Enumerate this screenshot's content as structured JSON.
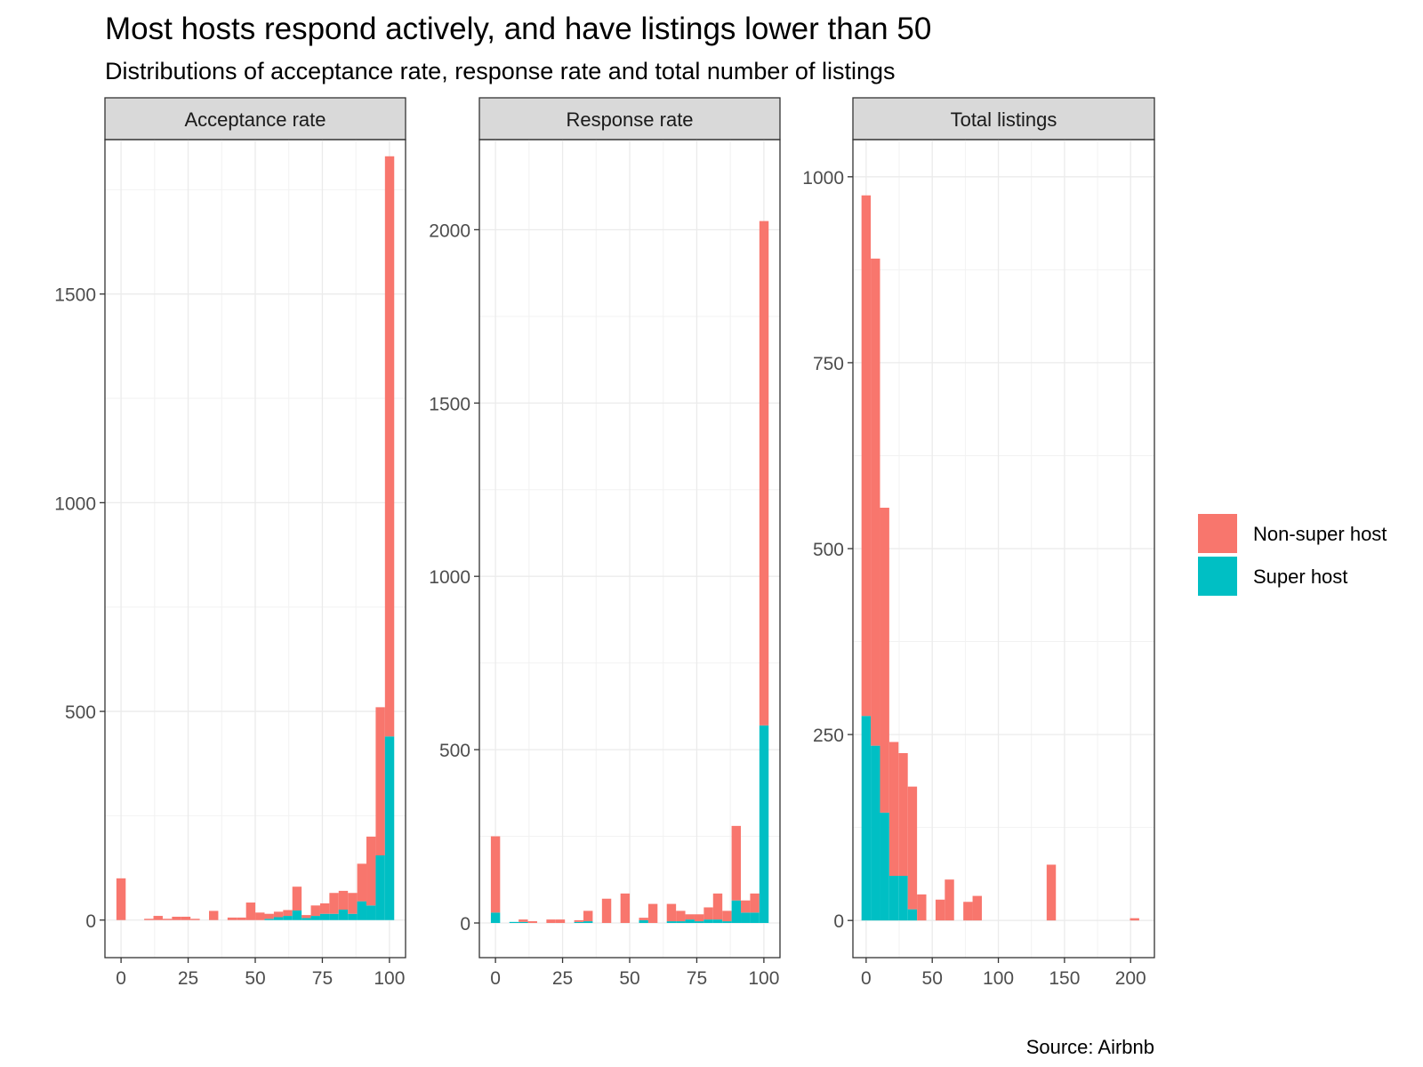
{
  "chart_data": {
    "type": "bar",
    "subtype": "stacked histogram, faceted",
    "title": "Most hosts respond actively, and have listings lower than 50",
    "subtitle": "Distributions of acceptance rate, response rate and total number of listings",
    "caption": "Source: Airbnb",
    "legend": {
      "position": "right",
      "entries": [
        {
          "key": "non_super",
          "label": "Non-super host",
          "color": "#F8766D"
        },
        {
          "key": "super",
          "label": "Super host",
          "color": "#00BFC4"
        }
      ]
    },
    "facets": [
      {
        "name": "Acceptance rate",
        "xlim": [
          -6,
          106
        ],
        "ylim": [
          -90,
          1870
        ],
        "x_ticks": [
          0,
          25,
          50,
          75,
          100
        ],
        "y_ticks": [
          0,
          500,
          1000,
          1500
        ],
        "y_minor": [
          250,
          750,
          1250,
          1750
        ],
        "bin_width": 3.45,
        "bins": [
          {
            "x": 0,
            "super": 0,
            "non_super": 100
          },
          {
            "x": 10.35,
            "super": 0,
            "non_super": 3
          },
          {
            "x": 13.8,
            "super": 0,
            "non_super": 10
          },
          {
            "x": 17.25,
            "super": 0,
            "non_super": 3
          },
          {
            "x": 20.7,
            "super": 0,
            "non_super": 8
          },
          {
            "x": 24.15,
            "super": 0,
            "non_super": 8
          },
          {
            "x": 27.6,
            "super": 0,
            "non_super": 3
          },
          {
            "x": 34.5,
            "super": 0,
            "non_super": 22
          },
          {
            "x": 41.4,
            "super": 0,
            "non_super": 6
          },
          {
            "x": 44.85,
            "super": 0,
            "non_super": 6
          },
          {
            "x": 48.3,
            "super": 0,
            "non_super": 42
          },
          {
            "x": 51.75,
            "super": 0,
            "non_super": 18
          },
          {
            "x": 55.2,
            "super": 3,
            "non_super": 12
          },
          {
            "x": 58.65,
            "super": 7,
            "non_super": 13
          },
          {
            "x": 62.1,
            "super": 10,
            "non_super": 14
          },
          {
            "x": 65.55,
            "super": 23,
            "non_super": 57
          },
          {
            "x": 69,
            "super": 5,
            "non_super": 7
          },
          {
            "x": 72.45,
            "super": 10,
            "non_super": 25
          },
          {
            "x": 75.9,
            "super": 15,
            "non_super": 25
          },
          {
            "x": 79.35,
            "super": 15,
            "non_super": 50
          },
          {
            "x": 82.8,
            "super": 25,
            "non_super": 45
          },
          {
            "x": 86.25,
            "super": 15,
            "non_super": 50
          },
          {
            "x": 89.7,
            "super": 45,
            "non_super": 90
          },
          {
            "x": 93.15,
            "super": 35,
            "non_super": 165
          },
          {
            "x": 96.6,
            "super": 155,
            "non_super": 355
          },
          {
            "x": 100.05,
            "super": 440,
            "non_super": 1390
          }
        ]
      },
      {
        "name": "Response rate",
        "xlim": [
          -6,
          106
        ],
        "ylim": [
          -100,
          2260
        ],
        "x_ticks": [
          0,
          25,
          50,
          75,
          100
        ],
        "y_ticks": [
          0,
          500,
          1000,
          1500,
          2000
        ],
        "y_minor": [
          250,
          750,
          1250,
          1750
        ],
        "bin_width": 3.45,
        "bins": [
          {
            "x": 0,
            "super": 30,
            "non_super": 220
          },
          {
            "x": 6.9,
            "super": 3,
            "non_super": 0
          },
          {
            "x": 10.35,
            "super": 3,
            "non_super": 7
          },
          {
            "x": 13.8,
            "super": 0,
            "non_super": 5
          },
          {
            "x": 20.7,
            "super": 0,
            "non_super": 10
          },
          {
            "x": 24.15,
            "super": 0,
            "non_super": 10
          },
          {
            "x": 31.05,
            "super": 3,
            "non_super": 5
          },
          {
            "x": 34.5,
            "super": 5,
            "non_super": 30
          },
          {
            "x": 41.4,
            "super": 0,
            "non_super": 70
          },
          {
            "x": 48.3,
            "super": 0,
            "non_super": 85
          },
          {
            "x": 55.2,
            "super": 8,
            "non_super": 7
          },
          {
            "x": 58.65,
            "super": 0,
            "non_super": 55
          },
          {
            "x": 65.55,
            "super": 5,
            "non_super": 50
          },
          {
            "x": 69,
            "super": 5,
            "non_super": 30
          },
          {
            "x": 72.45,
            "super": 10,
            "non_super": 15
          },
          {
            "x": 75.9,
            "super": 5,
            "non_super": 20
          },
          {
            "x": 79.35,
            "super": 10,
            "non_super": 35
          },
          {
            "x": 82.8,
            "super": 10,
            "non_super": 75
          },
          {
            "x": 86.25,
            "super": 5,
            "non_super": 30
          },
          {
            "x": 89.7,
            "super": 65,
            "non_super": 215
          },
          {
            "x": 93.15,
            "super": 30,
            "non_super": 35
          },
          {
            "x": 96.6,
            "super": 30,
            "non_super": 55
          },
          {
            "x": 100.05,
            "super": 570,
            "non_super": 1455
          }
        ]
      },
      {
        "name": "Total listings",
        "xlim": [
          -10,
          218
        ],
        "ylim": [
          -50,
          1050
        ],
        "x_ticks": [
          0,
          50,
          100,
          150,
          200
        ],
        "y_ticks": [
          0,
          250,
          500,
          750,
          1000
        ],
        "y_minor": [
          125,
          375,
          625,
          875
        ],
        "bin_width": 7,
        "bins": [
          {
            "x": 0,
            "super": 275,
            "non_super": 700
          },
          {
            "x": 7,
            "super": 235,
            "non_super": 655
          },
          {
            "x": 14,
            "super": 145,
            "non_super": 410
          },
          {
            "x": 21,
            "super": 60,
            "non_super": 180
          },
          {
            "x": 28,
            "super": 60,
            "non_super": 165
          },
          {
            "x": 35,
            "super": 15,
            "non_super": 165
          },
          {
            "x": 42,
            "super": 0,
            "non_super": 35
          },
          {
            "x": 56,
            "super": 0,
            "non_super": 28
          },
          {
            "x": 63,
            "super": 0,
            "non_super": 55
          },
          {
            "x": 77,
            "super": 0,
            "non_super": 25
          },
          {
            "x": 84,
            "super": 0,
            "non_super": 33
          },
          {
            "x": 140,
            "super": 0,
            "non_super": 75
          },
          {
            "x": 203,
            "super": 0,
            "non_super": 3
          }
        ]
      }
    ]
  }
}
